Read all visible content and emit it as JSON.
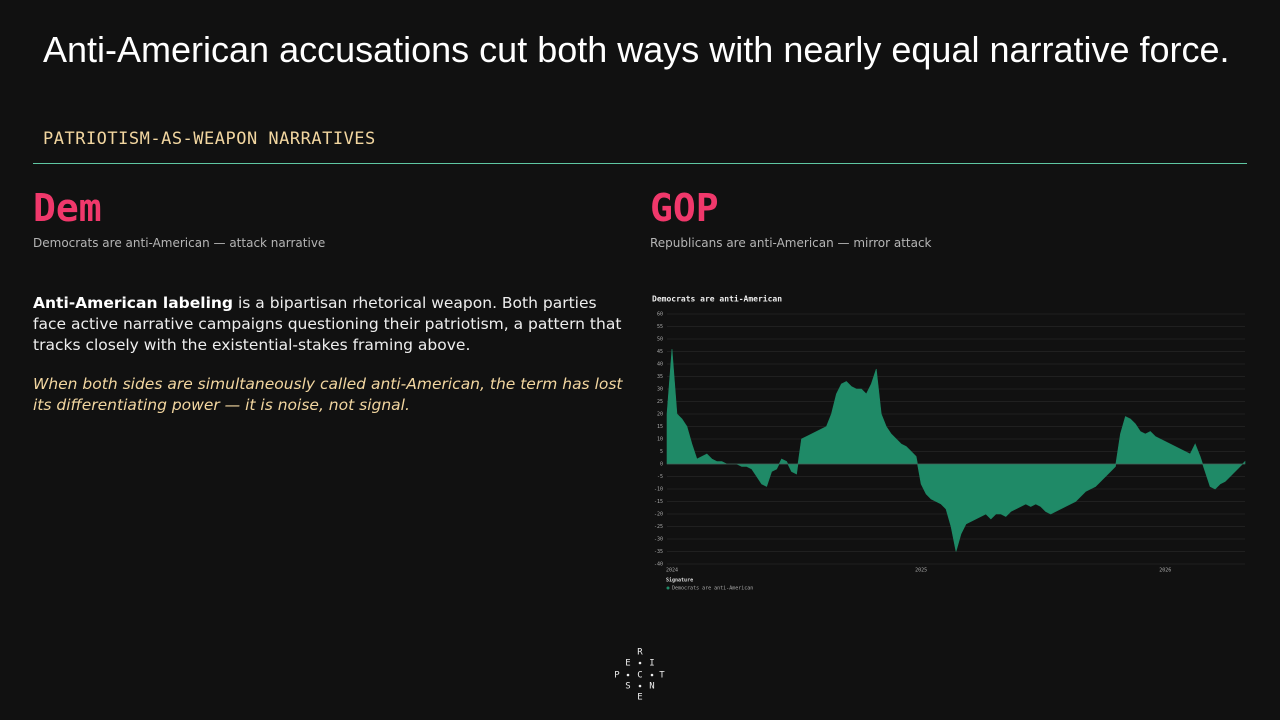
{
  "slide": {
    "title": "Anti-American accusations cut both ways with nearly equal narrative force.",
    "subtitle": "PATRIOTISM-AS-WEAPON NARRATIVES",
    "left": {
      "heading": "Dem",
      "caption": "Democrats are anti-American — attack narrative"
    },
    "right": {
      "heading": "GOP",
      "caption": "Republicans are anti-American — mirror attack"
    },
    "paragraph": {
      "bold": "Anti-American labeling",
      "rest": " is a bipartisan rhetorical weapon. Both parties face active narrative campaigns questioning their patriotism, a pattern that tracks closely with the existential-stakes framing above."
    },
    "quote": "When both sides are simultaneously called anti-American, the term has lost its differentiating power — it is noise, not signal.",
    "logo": [
      "R",
      "E",
      "I",
      "P",
      "C",
      "T",
      "S",
      "N",
      "E"
    ]
  },
  "chart_data": {
    "type": "area",
    "title": "Democrats are anti-American",
    "legend_title": "Signature",
    "grid": true,
    "ylim": [
      -40,
      60
    ],
    "yticks": [
      -40,
      -35,
      -30,
      -25,
      -20,
      -15,
      -10,
      -5,
      0,
      5,
      10,
      15,
      20,
      25,
      30,
      35,
      40,
      45,
      50,
      55,
      60
    ],
    "categories": [
      "2024",
      null,
      null,
      null,
      null,
      null,
      null,
      null,
      null,
      null,
      null,
      null,
      null,
      null,
      null,
      null,
      null,
      null,
      null,
      null,
      null,
      null,
      null,
      null,
      null,
      null,
      null,
      null,
      null,
      null,
      null,
      null,
      null,
      null,
      null,
      null,
      null,
      null,
      null,
      null,
      null,
      null,
      null,
      null,
      null,
      null,
      null,
      null,
      null,
      null,
      "2025",
      null,
      null,
      null,
      null,
      null,
      null,
      null,
      null,
      null,
      null,
      null,
      null,
      null,
      null,
      null,
      null,
      null,
      null,
      null,
      null,
      null,
      null,
      null,
      null,
      null,
      null,
      null,
      null,
      null,
      null,
      null,
      null,
      null,
      null,
      null,
      null,
      null,
      null,
      null,
      null,
      null,
      null,
      null,
      null,
      null,
      null,
      null,
      null,
      "2026",
      null,
      null,
      null,
      null,
      null,
      null,
      null,
      null,
      null,
      null,
      null,
      null,
      null,
      null,
      null,
      null,
      null
    ],
    "series": [
      {
        "name": "Democrats are anti-American",
        "color": "#1f8a67",
        "values": [
          20,
          46,
          20,
          18,
          15,
          8,
          2,
          3,
          4,
          2,
          1,
          1,
          0,
          0,
          0,
          -1,
          -1,
          -2,
          -5,
          -8,
          -9,
          -3,
          -2,
          2,
          1,
          -3,
          -4,
          10,
          11,
          12,
          13,
          14,
          15,
          20,
          28,
          32,
          33,
          31,
          30,
          30,
          28,
          32,
          38,
          20,
          15,
          12,
          10,
          8,
          7,
          5,
          3,
          -8,
          -12,
          -14,
          -15,
          -16,
          -18,
          -25,
          -35,
          -28,
          -24,
          -23,
          -22,
          -21,
          -20,
          -22,
          -20,
          -20,
          -21,
          -19,
          -18,
          -17,
          -16,
          -17,
          -16,
          -17,
          -19,
          -20,
          -19,
          -18,
          -17,
          -16,
          -15,
          -13,
          -11,
          -10,
          -9,
          -7,
          -5,
          -3,
          -1,
          12,
          19,
          18,
          16,
          13,
          12,
          13,
          11,
          10,
          9,
          8,
          7,
          6,
          5,
          4,
          8,
          3,
          -3,
          -9,
          -10,
          -8,
          -7,
          -5,
          -3,
          -1,
          1
        ]
      }
    ]
  }
}
